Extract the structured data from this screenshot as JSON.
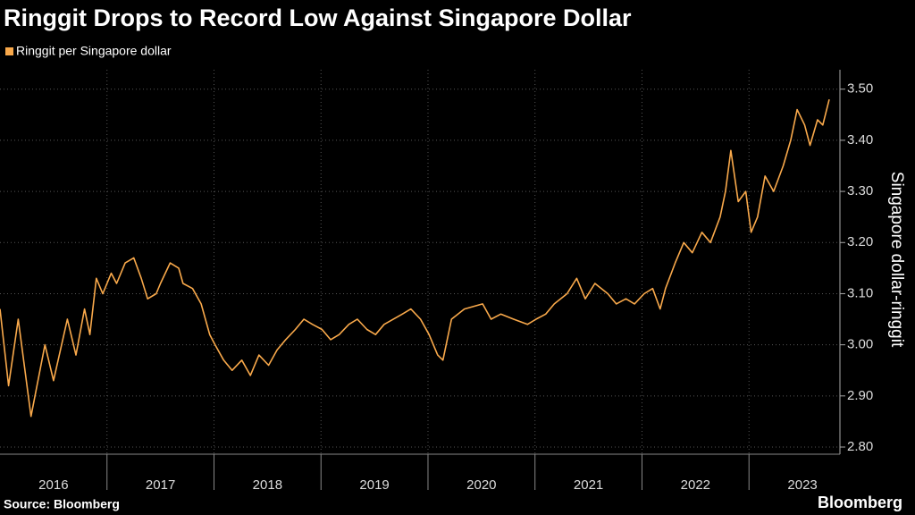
{
  "chart_data": {
    "type": "line",
    "title": "Ringgit Drops to Record Low Against Singapore Dollar",
    "y_axis_label": "Singapore dollar-ringgit",
    "source": "Source: Bloomberg",
    "brand": "Bloomberg",
    "grid": true,
    "xlim": [
      2016,
      2023.85
    ],
    "xticks": [
      2016,
      2017,
      2018,
      2019,
      2020,
      2021,
      2022,
      2023
    ],
    "ylim": [
      2.786,
      3.538
    ],
    "yticks": [
      {
        "value": 2.8,
        "label": "2.80"
      },
      {
        "value": 2.9,
        "label": "2.90"
      },
      {
        "value": 3.0,
        "label": "3.00"
      },
      {
        "value": 3.1,
        "label": "3.10"
      },
      {
        "value": 3.2,
        "label": "3.20"
      },
      {
        "value": 3.3,
        "label": "3.30"
      },
      {
        "value": 3.4,
        "label": "3.40"
      },
      {
        "value": 3.5,
        "label": "3.50"
      }
    ],
    "x": [
      2016.0,
      2016.08,
      2016.17,
      2016.29,
      2016.42,
      2016.5,
      2016.63,
      2016.71,
      2016.79,
      2016.84,
      2016.9,
      2016.96,
      2017.04,
      2017.09,
      2017.17,
      2017.25,
      2017.32,
      2017.38,
      2017.46,
      2017.5,
      2017.59,
      2017.67,
      2017.71,
      2017.8,
      2017.88,
      2017.96,
      2018.01,
      2018.09,
      2018.17,
      2018.26,
      2018.34,
      2018.42,
      2018.51,
      2018.59,
      2018.67,
      2018.76,
      2018.84,
      2018.92,
      2019.01,
      2019.09,
      2019.17,
      2019.26,
      2019.34,
      2019.43,
      2019.51,
      2019.59,
      2019.76,
      2019.84,
      2019.93,
      2020.01,
      2020.09,
      2020.14,
      2020.22,
      2020.34,
      2020.51,
      2020.59,
      2020.68,
      2020.8,
      2020.93,
      2021.01,
      2021.1,
      2021.18,
      2021.3,
      2021.39,
      2021.47,
      2021.56,
      2021.68,
      2021.76,
      2021.85,
      2021.93,
      2022.02,
      2022.1,
      2022.17,
      2022.22,
      2022.31,
      2022.39,
      2022.47,
      2022.56,
      2022.64,
      2022.73,
      2022.78,
      2022.83,
      2022.9,
      2022.97,
      2023.02,
      2023.08,
      2023.15,
      2023.23,
      2023.32,
      2023.39,
      2023.45,
      2023.52,
      2023.57,
      2023.64,
      2023.69,
      2023.75
    ],
    "series": [
      {
        "name": "Ringgit per Singapore dollar",
        "color": "#f9a94b",
        "values": [
          3.07,
          2.92,
          3.05,
          2.86,
          3.0,
          2.93,
          3.05,
          2.98,
          3.07,
          3.02,
          3.13,
          3.1,
          3.14,
          3.12,
          3.16,
          3.17,
          3.13,
          3.09,
          3.1,
          3.12,
          3.16,
          3.15,
          3.12,
          3.11,
          3.08,
          3.02,
          3.0,
          2.97,
          2.95,
          2.97,
          2.94,
          2.98,
          2.96,
          2.99,
          3.01,
          3.03,
          3.05,
          3.04,
          3.03,
          3.01,
          3.02,
          3.04,
          3.05,
          3.03,
          3.02,
          3.04,
          3.06,
          3.07,
          3.05,
          3.02,
          2.98,
          2.97,
          3.05,
          3.07,
          3.08,
          3.05,
          3.06,
          3.05,
          3.04,
          3.05,
          3.06,
          3.08,
          3.1,
          3.13,
          3.09,
          3.12,
          3.1,
          3.08,
          3.09,
          3.08,
          3.1,
          3.11,
          3.07,
          3.11,
          3.16,
          3.2,
          3.18,
          3.22,
          3.2,
          3.25,
          3.3,
          3.38,
          3.28,
          3.3,
          3.22,
          3.25,
          3.33,
          3.3,
          3.35,
          3.4,
          3.46,
          3.43,
          3.39,
          3.44,
          3.43,
          3.48
        ]
      }
    ]
  }
}
